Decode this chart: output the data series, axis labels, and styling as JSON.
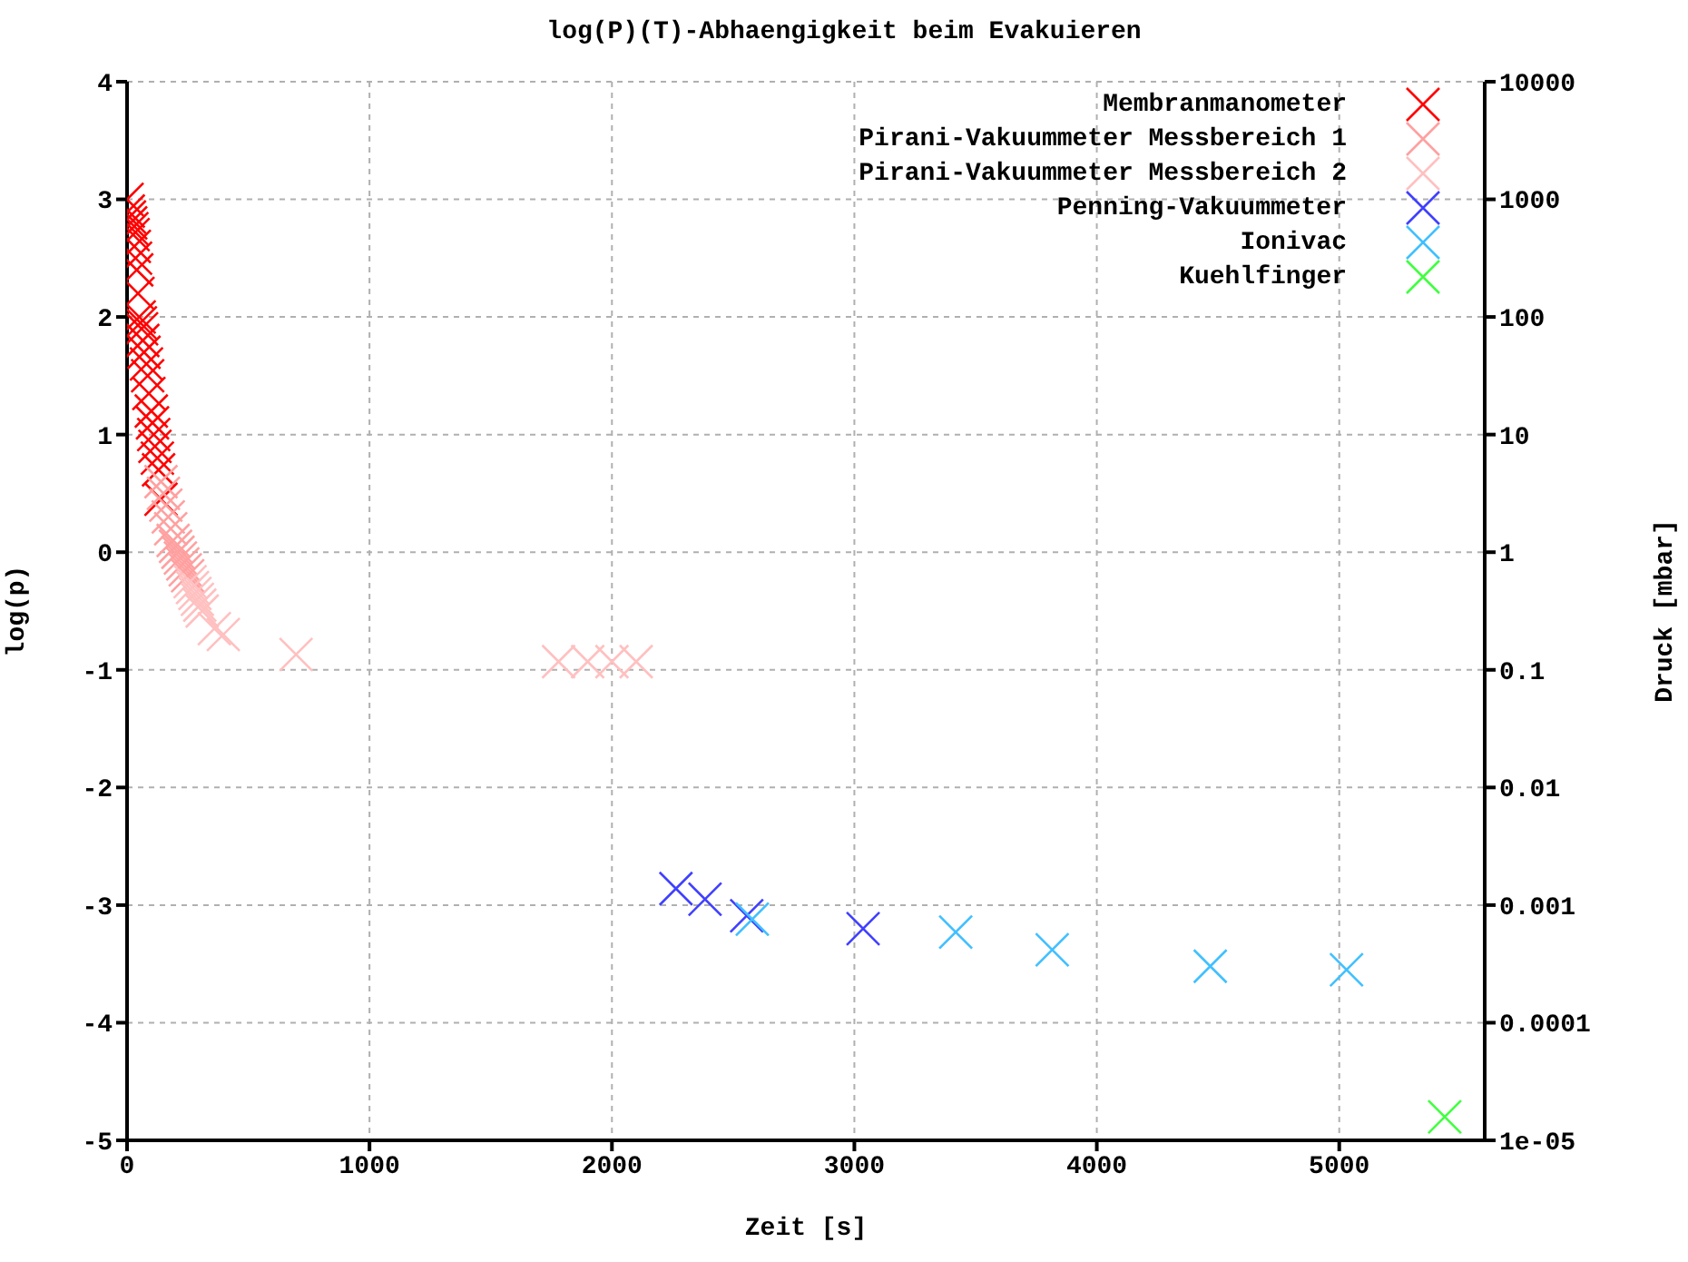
{
  "chart_data": {
    "type": "scatter",
    "title": "log(P)(T)-Abhaengigkeit beim Evakuieren",
    "xlabel": "Zeit [s]",
    "ylabel": "log(p)",
    "y2label": "Druck [mbar]",
    "xlim": [
      0,
      5600
    ],
    "xticks": [
      0,
      1000,
      2000,
      3000,
      4000,
      5000
    ],
    "ylim": [
      -5,
      4
    ],
    "yticks": [
      -5,
      -4,
      -3,
      -2,
      -1,
      0,
      1,
      2,
      3,
      4
    ],
    "y2lim": [
      1e-05,
      10000
    ],
    "y2ticks": [
      {
        "value": 1e-05,
        "label": "1e-05"
      },
      0.0001,
      0.001,
      0.01,
      0.1,
      1,
      10,
      100,
      1000,
      10000
    ],
    "log": "y2",
    "grid": true,
    "legend": "top right",
    "marker": "cross",
    "series": [
      {
        "name": "Membranmanometer",
        "color": "#ff0000",
        "x": [
          0,
          5,
          10,
          15,
          20,
          25,
          30,
          35,
          40,
          45,
          50,
          55,
          60,
          65,
          70,
          80,
          85,
          90,
          100,
          105,
          110,
          115,
          125,
          130,
          140
        ],
        "values": [
          3.0,
          2.9,
          2.85,
          2.8,
          2.75,
          2.7,
          2.6,
          2.5,
          2.4,
          2.2,
          2.0,
          1.95,
          1.9,
          1.8,
          1.7,
          1.6,
          1.5,
          1.35,
          1.2,
          1.1,
          1.0,
          0.9,
          0.8,
          0.7,
          0.45
        ]
      },
      {
        "name": "Pirani-Vakuummeter Messbereich 1",
        "color": "#ffa0a0",
        "x": [
          140,
          150,
          160,
          170,
          180,
          190,
          200,
          210,
          220,
          230,
          240,
          250
        ],
        "values": [
          0.6,
          0.5,
          0.4,
          0.3,
          0.2,
          0.1,
          0.05,
          0.0,
          -0.05,
          -0.1,
          -0.15,
          -0.2
        ]
      },
      {
        "name": "Pirani-Vakuummeter Messbereich 2",
        "color": "#ffc0c0",
        "x": [
          260,
          270,
          280,
          290,
          300,
          310,
          360,
          397,
          697,
          1780,
          1900,
          2000,
          2100
        ],
        "values": [
          -0.25,
          -0.3,
          -0.35,
          -0.4,
          -0.45,
          -0.5,
          -0.65,
          -0.7,
          -0.87,
          -0.93,
          -0.93,
          -0.93,
          -0.93
        ]
      },
      {
        "name": "Penning-Vakuummeter",
        "color": "#4040ff",
        "x": [
          2264,
          2384,
          2556,
          3036
        ],
        "values": [
          -2.86,
          -2.95,
          -3.09,
          -3.2
        ]
      },
      {
        "name": "Ionivac",
        "color": "#40c0ff",
        "x": [
          2579,
          3418,
          3816,
          4468,
          5030
        ],
        "values": [
          -3.12,
          -3.23,
          -3.38,
          -3.52,
          -3.55
        ]
      },
      {
        "name": "Kuehlfinger",
        "color": "#40ff40",
        "x": [
          5435
        ],
        "values": [
          -4.8
        ]
      }
    ]
  }
}
